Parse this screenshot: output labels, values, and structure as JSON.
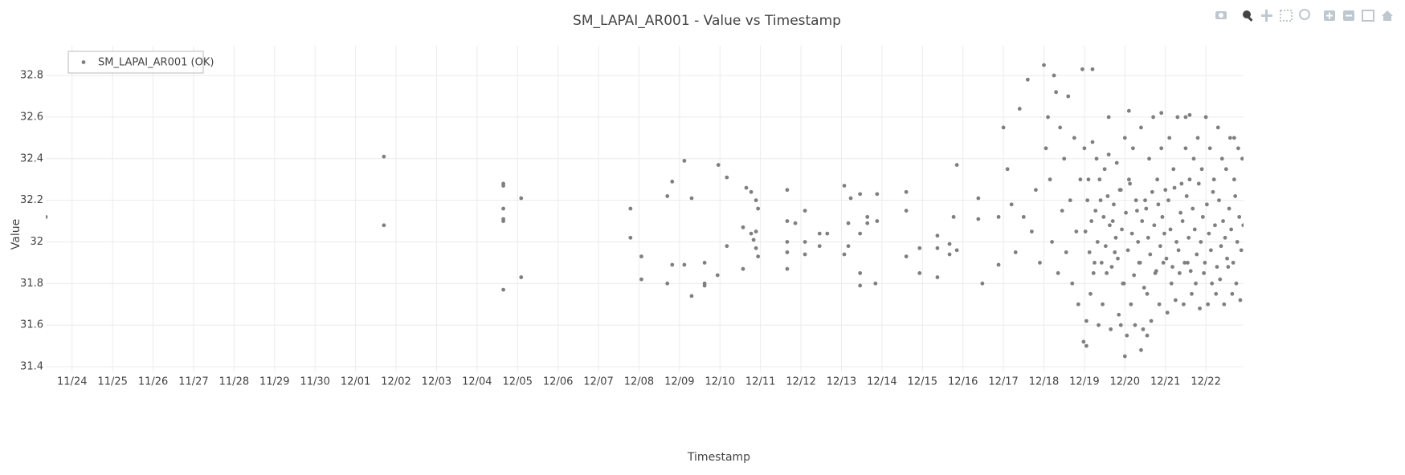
{
  "chart_data": {
    "type": "scatter",
    "title": "SM_LAPAI_AR001 - Value vs Timestamp",
    "x_label": "Timestamp",
    "y_label": "Value",
    "legend": "top-left",
    "grid": true,
    "xlim": [
      -0.65,
      28.93
    ],
    "ylim": [
      31.377,
      32.943
    ],
    "yticks": [
      31.4,
      31.6,
      31.8,
      32,
      32.2,
      32.4,
      32.6,
      32.8
    ],
    "xticks": [
      {
        "value": 0,
        "label": "11/24"
      },
      {
        "value": 1,
        "label": "11/25"
      },
      {
        "value": 2,
        "label": "11/26"
      },
      {
        "value": 3,
        "label": "11/27"
      },
      {
        "value": 4,
        "label": "11/28"
      },
      {
        "value": 5,
        "label": "11/29"
      },
      {
        "value": 6,
        "label": "11/30"
      },
      {
        "value": 7,
        "label": "12/01"
      },
      {
        "value": 8,
        "label": "12/02"
      },
      {
        "value": 9,
        "label": "12/03"
      },
      {
        "value": 10,
        "label": "12/04"
      },
      {
        "value": 11,
        "label": "12/05"
      },
      {
        "value": 12,
        "label": "12/06"
      },
      {
        "value": 13,
        "label": "12/07"
      },
      {
        "value": 14,
        "label": "12/08"
      },
      {
        "value": 15,
        "label": "12/09"
      },
      {
        "value": 16,
        "label": "12/10"
      },
      {
        "value": 17,
        "label": "12/11"
      },
      {
        "value": 18,
        "label": "12/12"
      },
      {
        "value": 19,
        "label": "12/13"
      },
      {
        "value": 20,
        "label": "12/14"
      },
      {
        "value": 21,
        "label": "12/15"
      },
      {
        "value": 22,
        "label": "12/16"
      },
      {
        "value": 23,
        "label": "12/17"
      },
      {
        "value": 24,
        "label": "12/18"
      },
      {
        "value": 25,
        "label": "12/19"
      },
      {
        "value": 26,
        "label": "12/20"
      },
      {
        "value": 27,
        "label": "12/21"
      },
      {
        "value": 28,
        "label": "12/22"
      }
    ],
    "x": [
      -0.65,
      7.7,
      7.7,
      10.65,
      10.65,
      10.65,
      10.65,
      10.65,
      10.65,
      11.09,
      11.09,
      13.79,
      13.79,
      14.06,
      14.06,
      14.7,
      14.7,
      14.82,
      14.82,
      15.12,
      15.12,
      15.3,
      15.3,
      15.62,
      15.62,
      15.62,
      15.94,
      15.96,
      16.17,
      16.17,
      16.57,
      16.57,
      16.65,
      16.77,
      16.77,
      16.83,
      16.89,
      16.89,
      16.89,
      16.94,
      16.94,
      17.66,
      17.66,
      17.66,
      17.66,
      17.66,
      17.86,
      18.1,
      18.1,
      18.1,
      18.46,
      18.46,
      18.65,
      19.07,
      19.07,
      19.17,
      19.17,
      19.23,
      19.46,
      19.46,
      19.46,
      19.46,
      19.64,
      19.64,
      19.84,
      19.88,
      19.88,
      20.6,
      20.6,
      20.6,
      20.93,
      20.93,
      21.37,
      21.37,
      21.37,
      21.67,
      21.67,
      21.77,
      21.85,
      21.85,
      22.38,
      22.38,
      22.48,
      22.88,
      22.88,
      23.0,
      23.1,
      23.2,
      23.3,
      23.4,
      23.5,
      23.6,
      23.7,
      23.8,
      23.9,
      24.0,
      24.05,
      24.1,
      24.15,
      24.2,
      24.25,
      24.3,
      24.35,
      24.4,
      24.45,
      24.5,
      24.55,
      24.6,
      24.65,
      24.7,
      24.75,
      24.8,
      24.85,
      24.9,
      24.95,
      24.98,
      25.0,
      25.05,
      25.1,
      25.15,
      25.2,
      25.25,
      25.3,
      25.35,
      25.4,
      25.45,
      25.5,
      25.55,
      25.6,
      25.65,
      25.7,
      25.75,
      25.8,
      25.85,
      25.9,
      25.95,
      26.0,
      26.05,
      26.1,
      26.15,
      26.2,
      26.25,
      26.3,
      26.35,
      26.4,
      26.45,
      26.5,
      26.55,
      26.6,
      26.65,
      26.7,
      26.75,
      26.8,
      26.85,
      26.9,
      26.95,
      27.0,
      27.05,
      27.1,
      27.15,
      27.2,
      27.25,
      27.3,
      27.35,
      27.4,
      27.45,
      27.5,
      27.55,
      27.6,
      27.65,
      27.7,
      27.75,
      27.8,
      27.85,
      27.9,
      27.95,
      28.0,
      28.05,
      28.1,
      28.15,
      28.2,
      28.25,
      28.3,
      28.35,
      28.4,
      28.45,
      28.5,
      28.55,
      28.6,
      28.65,
      28.7,
      28.75,
      28.8,
      28.85,
      28.9,
      25.025,
      25.075,
      25.125,
      25.175,
      25.225,
      25.275,
      25.325,
      25.375,
      25.425,
      25.475,
      25.525,
      25.575,
      25.625,
      25.675,
      25.725,
      25.775,
      25.825,
      25.875,
      25.925,
      25.975,
      26.025,
      26.075,
      26.125,
      26.175,
      26.225,
      26.275,
      26.325,
      26.375,
      26.425,
      26.475,
      26.525,
      26.575,
      26.625,
      26.675,
      26.725,
      26.775,
      26.825,
      26.875,
      26.925,
      26.975,
      27.025,
      27.075,
      27.125,
      27.175,
      27.225,
      27.275,
      27.325,
      27.375,
      27.425,
      27.475,
      27.525,
      27.575,
      27.625,
      27.675,
      27.725,
      27.775,
      27.825,
      27.875,
      27.925,
      27.975,
      28.025,
      28.075,
      28.125,
      28.175,
      28.225,
      28.275,
      28.325,
      28.375,
      28.425,
      28.475,
      28.525,
      28.575,
      28.625,
      28.675,
      28.725,
      28.775,
      28.825,
      28.875,
      28.925,
      25.05,
      26.0,
      26.4,
      25.2,
      25.6,
      26.1,
      27.5,
      27.6,
      28.7,
      26.9,
      26.55,
      25.9
    ],
    "series": [
      {
        "name": "SM_LAPAI_AR001 (OK)",
        "color": "#7f7f7f",
        "values": [
          32.12,
          32.41,
          32.08,
          32.28,
          32.27,
          32.16,
          32.11,
          32.1,
          31.77,
          32.21,
          31.83,
          32.16,
          32.02,
          31.93,
          31.82,
          32.22,
          31.8,
          32.29,
          31.89,
          32.39,
          31.89,
          32.21,
          31.74,
          31.9,
          31.8,
          31.79,
          31.84,
          32.37,
          32.31,
          31.98,
          32.07,
          31.87,
          32.26,
          32.24,
          32.04,
          32.01,
          32.2,
          32.05,
          31.97,
          32.16,
          31.93,
          32.25,
          32.1,
          32.0,
          31.95,
          31.87,
          32.09,
          32.15,
          32.0,
          31.94,
          32.04,
          31.98,
          32.04,
          32.27,
          31.94,
          32.09,
          31.98,
          32.21,
          32.23,
          32.04,
          31.85,
          31.79,
          32.12,
          32.09,
          31.8,
          32.23,
          32.1,
          32.24,
          32.15,
          31.93,
          31.97,
          31.85,
          32.03,
          31.97,
          31.83,
          31.99,
          31.94,
          32.12,
          32.37,
          31.96,
          32.21,
          32.11,
          31.8,
          32.12,
          31.89,
          32.55,
          32.35,
          32.18,
          31.95,
          32.64,
          32.12,
          32.78,
          32.05,
          32.25,
          31.9,
          32.85,
          32.45,
          32.6,
          32.3,
          32.0,
          32.8,
          32.72,
          31.85,
          32.55,
          32.15,
          32.4,
          31.95,
          32.7,
          32.2,
          31.8,
          32.5,
          32.05,
          31.7,
          32.3,
          32.83,
          31.52,
          32.45,
          31.62,
          32.3,
          31.75,
          32.48,
          31.9,
          32.4,
          31.6,
          32.2,
          31.7,
          32.35,
          31.85,
          32.42,
          31.58,
          32.1,
          31.95,
          32.38,
          31.65,
          32.25,
          31.8,
          32.5,
          31.55,
          32.3,
          31.7,
          32.45,
          31.6,
          32.15,
          31.9,
          32.55,
          31.58,
          32.2,
          31.75,
          32.4,
          31.62,
          32.6,
          31.85,
          32.3,
          31.7,
          32.45,
          31.9,
          32.25,
          31.66,
          32.5,
          31.8,
          32.35,
          31.72,
          32.6,
          31.85,
          32.28,
          31.7,
          32.45,
          31.9,
          32.3,
          31.75,
          32.4,
          31.8,
          32.5,
          31.68,
          32.35,
          31.85,
          32.6,
          31.7,
          32.45,
          31.8,
          32.3,
          31.75,
          32.55,
          31.82,
          32.4,
          31.7,
          32.35,
          31.88,
          32.5,
          31.75,
          32.3,
          31.8,
          32.45,
          31.72,
          32.4,
          32.05,
          32.2,
          31.95,
          32.1,
          31.85,
          32.15,
          32.0,
          32.3,
          31.9,
          32.12,
          31.98,
          32.22,
          32.08,
          31.88,
          32.18,
          32.02,
          31.92,
          32.25,
          32.06,
          31.8,
          32.14,
          31.96,
          32.28,
          32.04,
          31.84,
          32.2,
          32.0,
          31.9,
          32.1,
          31.78,
          32.16,
          32.02,
          31.94,
          32.24,
          32.08,
          31.86,
          32.18,
          31.98,
          32.12,
          32.04,
          31.92,
          32.2,
          32.06,
          31.88,
          32.26,
          32.0,
          31.96,
          32.14,
          32.1,
          31.9,
          32.22,
          32.02,
          31.86,
          32.16,
          32.06,
          31.94,
          32.28,
          32.0,
          32.12,
          31.9,
          32.18,
          32.04,
          31.96,
          32.24,
          32.08,
          31.88,
          32.2,
          31.98,
          32.1,
          32.02,
          31.92,
          32.16,
          32.06,
          31.9,
          32.22,
          32.0,
          32.12,
          31.96,
          32.08,
          31.5,
          31.45,
          31.48,
          32.83,
          32.6,
          32.63,
          32.6,
          32.61,
          32.5,
          32.62,
          31.55,
          31.6
        ]
      }
    ]
  }
}
